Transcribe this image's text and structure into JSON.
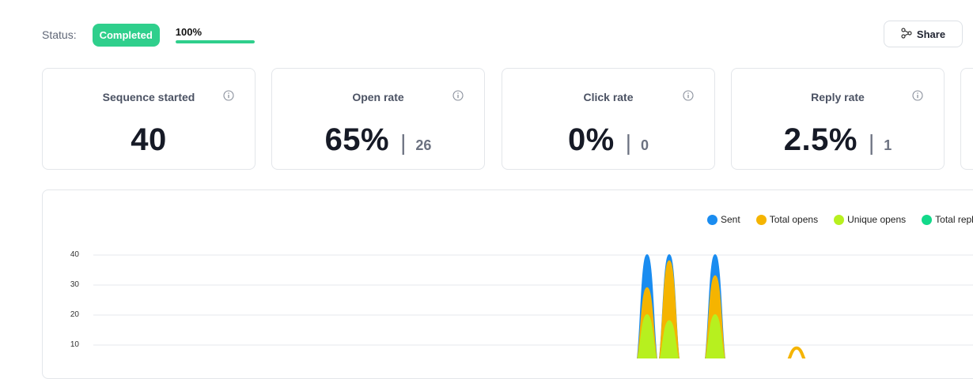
{
  "status": {
    "label": "Status:",
    "badge": "Completed",
    "progress_text": "100%",
    "progress_fraction": 1.0
  },
  "share": {
    "label": "Share",
    "icon": "share-icon"
  },
  "cards": [
    {
      "title": "Sequence started",
      "value": "40",
      "sub": ""
    },
    {
      "title": "Open rate",
      "value": "65%",
      "sub": "26"
    },
    {
      "title": "Click rate",
      "value": "0%",
      "sub": "0"
    },
    {
      "title": "Reply rate",
      "value": "2.5%",
      "sub": "1"
    }
  ],
  "colors": {
    "accent_green": "#2fcf8c",
    "sent": "#1a8cf0",
    "total_opens": "#f5b400",
    "unique_opens": "#b7f01f",
    "total_replies": "#12d98a"
  },
  "chart_data": {
    "type": "area",
    "legend": [
      "Sent",
      "Total opens",
      "Unique opens",
      "Total repl"
    ],
    "y_ticks": [
      "40",
      "30",
      "20",
      "10"
    ],
    "ylim": [
      0,
      40
    ],
    "series": [
      {
        "name": "Sent",
        "peaks": [
          40,
          40,
          40
        ]
      },
      {
        "name": "Total opens",
        "peaks": [
          29,
          38,
          33,
          9
        ]
      },
      {
        "name": "Unique opens",
        "peaks": [
          20,
          18,
          20
        ]
      }
    ],
    "grid": true,
    "legend_position": "top-right"
  }
}
